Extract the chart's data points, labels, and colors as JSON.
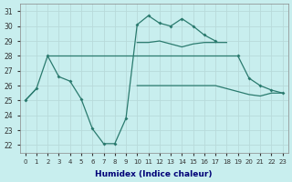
{
  "xlabel": "Humidex (Indice chaleur)",
  "x_values": [
    0,
    1,
    2,
    3,
    4,
    5,
    6,
    7,
    8,
    9,
    10,
    11,
    12,
    13,
    14,
    15,
    16,
    17,
    18,
    19,
    20,
    21,
    22,
    23
  ],
  "line_main": [
    25.0,
    25.8,
    28.0,
    26.6,
    26.3,
    25.1,
    23.1,
    22.1,
    22.1,
    23.8,
    30.1,
    30.7,
    30.2,
    30.0,
    30.5,
    30.0,
    29.4,
    29.0,
    null,
    null,
    null,
    null,
    null,
    null
  ],
  "line_descend": [
    null,
    null,
    null,
    null,
    null,
    null,
    null,
    null,
    null,
    null,
    null,
    null,
    null,
    null,
    null,
    null,
    null,
    null,
    null,
    28.0,
    26.5,
    26.0,
    25.7,
    25.5
  ],
  "line_flat28": [
    null,
    null,
    28.0,
    28.0,
    28.0,
    28.0,
    28.0,
    28.0,
    28.0,
    28.0,
    28.0,
    28.0,
    28.0,
    28.0,
    28.0,
    28.0,
    28.0,
    28.0,
    28.0,
    28.0,
    null,
    null,
    null,
    null
  ],
  "line_upper": [
    null,
    null,
    null,
    null,
    null,
    null,
    null,
    null,
    null,
    null,
    28.9,
    28.9,
    29.0,
    28.8,
    28.6,
    28.8,
    28.9,
    28.9,
    28.9,
    null,
    null,
    null,
    null,
    null
  ],
  "line_lower": [
    25.0,
    25.8,
    null,
    null,
    null,
    null,
    null,
    null,
    null,
    null,
    26.0,
    26.0,
    26.0,
    26.0,
    26.0,
    26.0,
    26.0,
    26.0,
    25.8,
    25.6,
    25.4,
    25.3,
    25.5,
    25.5
  ],
  "color": "#2a7a6e",
  "bg_color": "#c8eeee",
  "grid_color": "#b0d8d8",
  "ylim": [
    21.5,
    31.5
  ],
  "yticks": [
    22,
    23,
    24,
    25,
    26,
    27,
    28,
    29,
    30,
    31
  ],
  "xticks": [
    0,
    1,
    2,
    3,
    4,
    5,
    6,
    7,
    8,
    9,
    10,
    11,
    12,
    13,
    14,
    15,
    16,
    17,
    18,
    19,
    20,
    21,
    22,
    23
  ]
}
